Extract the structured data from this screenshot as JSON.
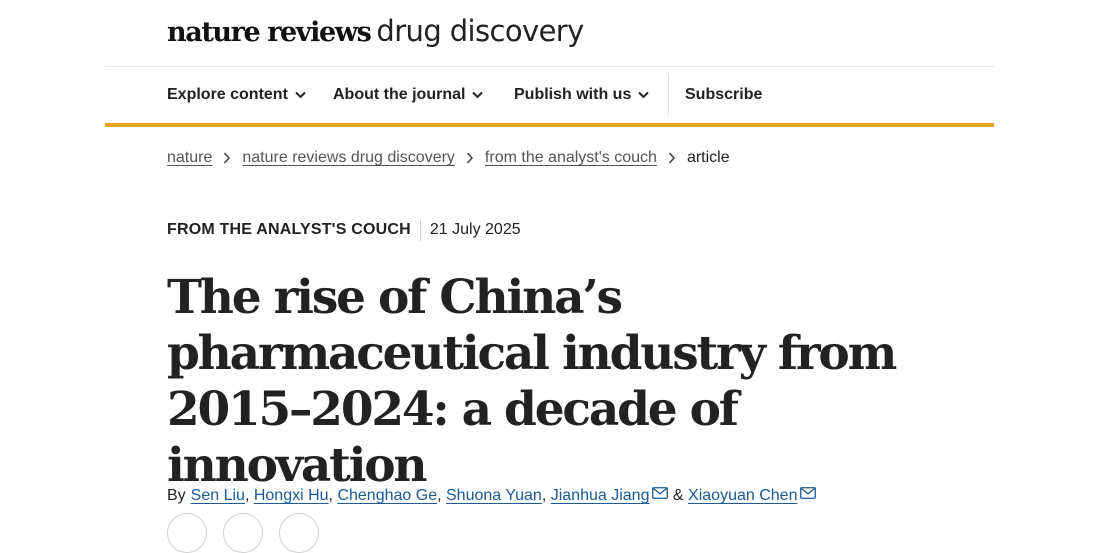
{
  "header": {
    "logo_bold": "nature reviews",
    "logo_light": "drug discovery"
  },
  "nav": {
    "explore": "Explore content",
    "about": "About the journal",
    "publish": "Publish with us",
    "subscribe": "Subscribe"
  },
  "breadcrumb": {
    "items": [
      "nature",
      "nature reviews drug discovery",
      "from the analyst's couch"
    ],
    "current": "article"
  },
  "article": {
    "type": "FROM THE ANALYST'S COUCH",
    "date": "21 July 2025",
    "title": "The rise of China’s pharmaceutical industry from 2015–2024: a decade of innovation",
    "by_label": "By",
    "authors": [
      "Sen Liu",
      "Hongxi Hu",
      "Chenghao Ge",
      "Shuona Yuan",
      "Jianhua Jiang",
      "Xiaoyuan Chen"
    ],
    "separator_comma": ",",
    "separator_and": "&"
  },
  "colors": {
    "accent": "#e8a61c",
    "link": "#1a5a96",
    "text": "#222222"
  },
  "icons": {
    "nav_dropdown": "chevron-down-icon",
    "breadcrumb_separator": "chevron-right-icon",
    "author_contact": "mail-icon"
  }
}
